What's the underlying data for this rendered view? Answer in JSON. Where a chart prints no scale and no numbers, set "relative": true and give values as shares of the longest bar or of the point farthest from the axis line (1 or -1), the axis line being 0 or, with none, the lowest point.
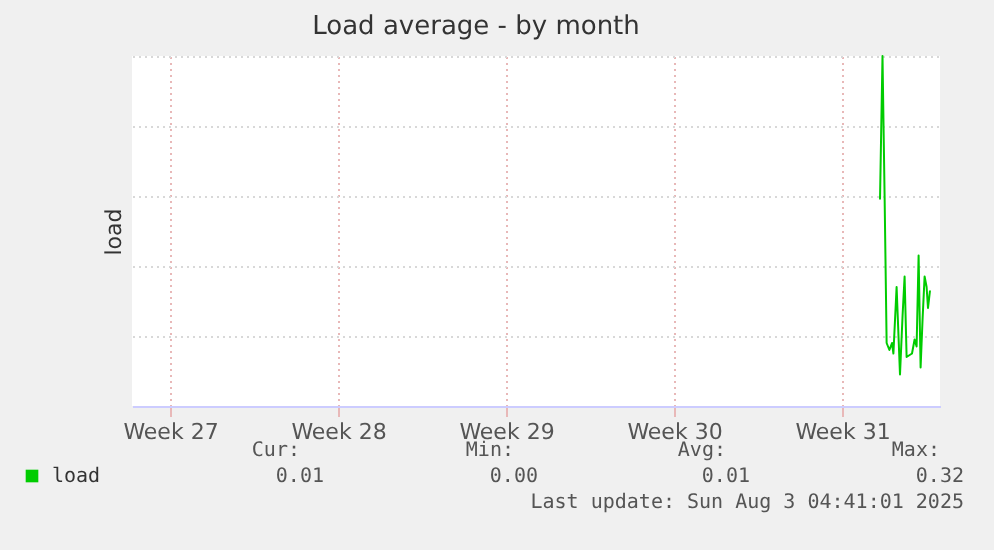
{
  "chart_data": {
    "type": "line",
    "title": "Load average - by month",
    "ylabel": "load",
    "relative": true,
    "grid": true,
    "legend": "bottom",
    "xlim": [
      "2025-06-30T22:00",
      "2025-08-03T14:00"
    ],
    "xticks": [
      {
        "value": "2025-07-02T12:00",
        "label": "Week 27"
      },
      {
        "value": "2025-07-09T12:00",
        "label": "Week 28"
      },
      {
        "value": "2025-07-16T12:00",
        "label": "Week 29"
      },
      {
        "value": "2025-07-23T12:00",
        "label": "Week 30"
      },
      {
        "value": "2025-07-30T12:00",
        "label": "Week 31"
      }
    ],
    "x": [
      "2025-08-01T02:00",
      "2025-08-01T04:30",
      "2025-08-01T06:36",
      "2025-08-01T08:38",
      "2025-08-01T11:24",
      "2025-08-01T14:00",
      "2025-08-01T15:24",
      "2025-08-01T18:36",
      "2025-08-01T22:00",
      "2025-08-02T00:36",
      "2025-08-02T02:36",
      "2025-08-02T04:36",
      "2025-08-02T10:00",
      "2025-08-02T12:36",
      "2025-08-02T14:36",
      "2025-08-02T16:36",
      "2025-08-02T18:36",
      "2025-08-02T20:36",
      "2025-08-02T22:36",
      "2025-08-03T00:36",
      "2025-08-03T02:00",
      "2025-08-03T04:00"
    ],
    "series": [
      {
        "name": "load",
        "color": "#00cc00",
        "values": [
          0.59,
          1,
          0.6,
          0.18,
          0.16,
          0.18,
          0.15,
          0.34,
          0.09,
          0.26,
          0.37,
          0.14,
          0.15,
          0.19,
          0.17,
          0.43,
          0.11,
          0.25,
          0.37,
          0.34,
          0.28,
          0.33
        ]
      }
    ],
    "annotations": [
      "Cur:",
      "Min:",
      "Avg:",
      "Max:",
      "0.01",
      "0.00",
      "0.01",
      "0.32",
      "Last update: Sun Aug  3 04:41:01 2025"
    ]
  }
}
